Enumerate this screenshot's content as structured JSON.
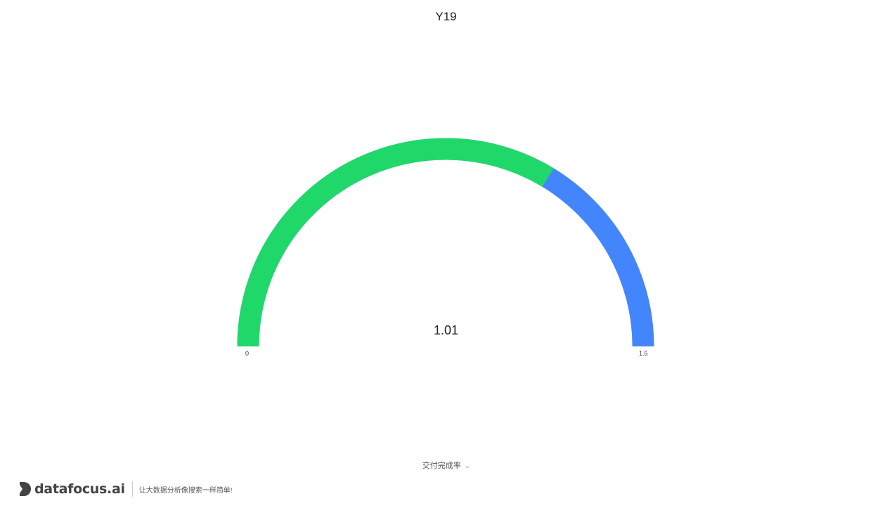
{
  "chart_data": {
    "type": "gauge",
    "title": "Y19",
    "value": 1.01,
    "value_label": "1.01",
    "min": 0,
    "max": 1.5,
    "min_label": "0",
    "max_label": "1.5",
    "progress_color": "#20d86a",
    "track_color": "#4285fc"
  },
  "measure_selector": {
    "label": "交付完成率"
  },
  "brand": {
    "name": "datafocus.ai",
    "slogan": "让大数据分析像搜索一样简单!",
    "color": "#444444"
  }
}
